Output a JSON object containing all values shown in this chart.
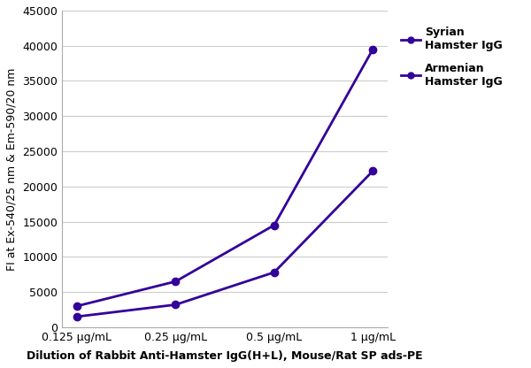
{
  "x_labels": [
    "0.125 μg/mL",
    "0.25 μg/mL",
    "0.5 μg/mL",
    "1 μg/mL"
  ],
  "x_positions": [
    0,
    1,
    2,
    3
  ],
  "syrian_values": [
    3000,
    6500,
    14500,
    39500
  ],
  "armenian_values": [
    1500,
    3200,
    7800,
    22200
  ],
  "line_color": "#330099",
  "ylabel": "FI at Ex-540/25 nm & Em-590/20 nm",
  "xlabel": "Dilution of Rabbit Anti-Hamster IgG(H+L), Mouse/Rat SP ads-PE",
  "ylim": [
    0,
    45000
  ],
  "yticks": [
    0,
    5000,
    10000,
    15000,
    20000,
    25000,
    30000,
    35000,
    40000,
    45000
  ],
  "legend_labels": [
    "Syrian\nHamster IgG",
    "Armenian\nHamster IgG"
  ],
  "axis_fontsize": 9,
  "tick_fontsize": 9,
  "legend_fontsize": 9,
  "background_color": "#ffffff",
  "grid_color": "#cccccc",
  "spine_color": "#aaaaaa"
}
